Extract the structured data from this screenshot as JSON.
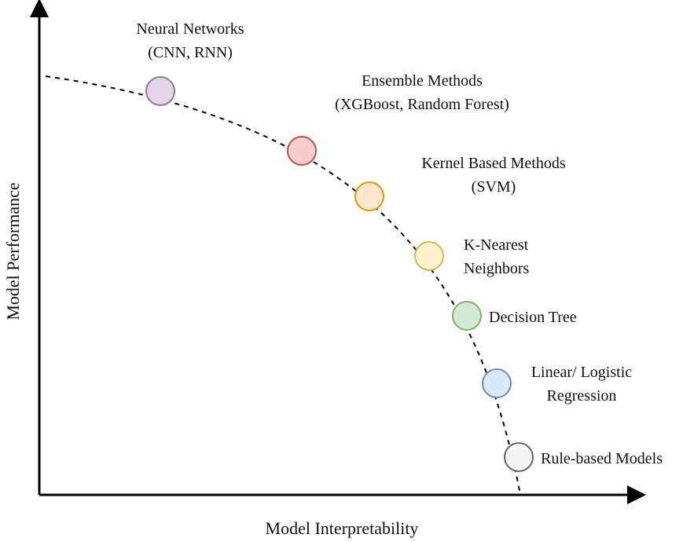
{
  "chart_data": {
    "type": "scatter",
    "xlabel": "Model Interpretability",
    "ylabel": "Model Performance",
    "curve": "dashed",
    "points": [
      {
        "name": "Neural Networks",
        "label_lines": [
          "Neural Networks",
          "(CNN, RNN)"
        ],
        "color": "#e1d5e7",
        "stroke": "#9673a6"
      },
      {
        "name": "Ensemble Methods",
        "label_lines": [
          "Ensemble Methods",
          "(XGBoost, Random Forest)"
        ],
        "color": "#f8cecc",
        "stroke": "#b85450"
      },
      {
        "name": "Kernel Based Methods",
        "label_lines": [
          "Kernel Based Methods",
          "(SVM)"
        ],
        "color": "#ffe6cc",
        "stroke": "#d79b00"
      },
      {
        "name": "K-Nearest Neighbors",
        "label_lines": [
          "K-Nearest",
          "Neighbors"
        ],
        "color": "#fff2cc",
        "stroke": "#d6b656"
      },
      {
        "name": "Decision Tree",
        "label_lines": [
          "Decision Tree"
        ],
        "color": "#d5e8d4",
        "stroke": "#82b366"
      },
      {
        "name": "Linear/ Logistic Regression",
        "label_lines": [
          "Linear/ Logistic",
          "Regression"
        ],
        "color": "#dae8fc",
        "stroke": "#6c8ebf"
      },
      {
        "name": "Rule-based Models",
        "label_lines": [
          "Rule-based Models"
        ],
        "color": "#f5f5f5",
        "stroke": "#666666"
      }
    ]
  }
}
